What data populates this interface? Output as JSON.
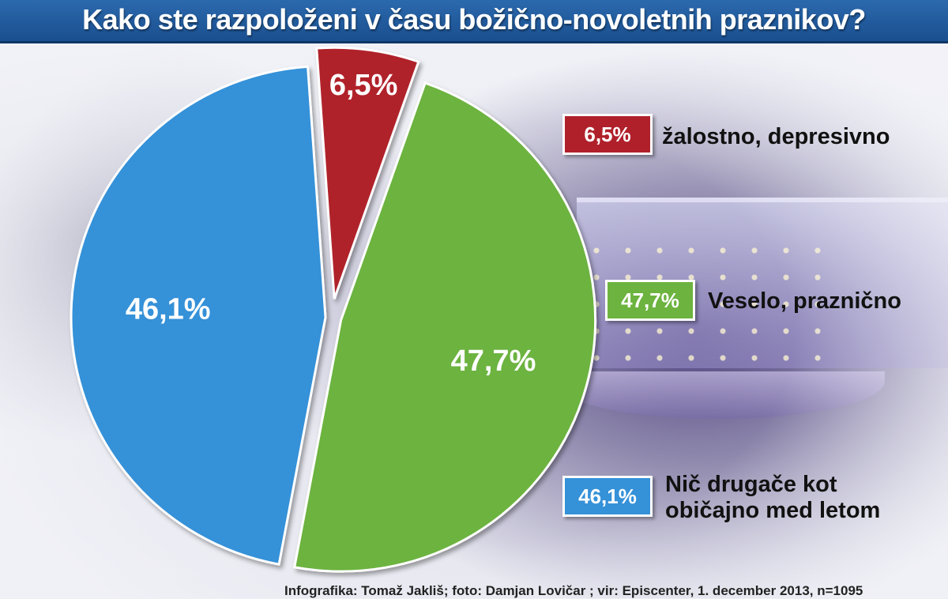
{
  "title": "Kako ste razpoloženi v času božično-novoletnih praznikov?",
  "source": "Infografika: Tomaž Jakliš; foto: Damjan Lovičar ; vir: Episcenter, 1. december 2013, n=1095",
  "chart_data": {
    "type": "pie",
    "title": "Kako ste razpoloženi v času božično-novoletnih praznikov?",
    "slices": [
      {
        "label": "žalostno, depresivno",
        "value": 6.5,
        "display": "6,5%",
        "color": "#b0202b"
      },
      {
        "label": "Veselo, praznično",
        "value": 47.7,
        "display": "47,7%",
        "color": "#6cb33f"
      },
      {
        "label": "Nič drugače kot običajno med letom",
        "label_lines": [
          "Nič drugače kot",
          "običajno med letom"
        ],
        "value": 46.1,
        "display": "46,1%",
        "color": "#3591d8"
      }
    ],
    "legend_position": "right"
  }
}
